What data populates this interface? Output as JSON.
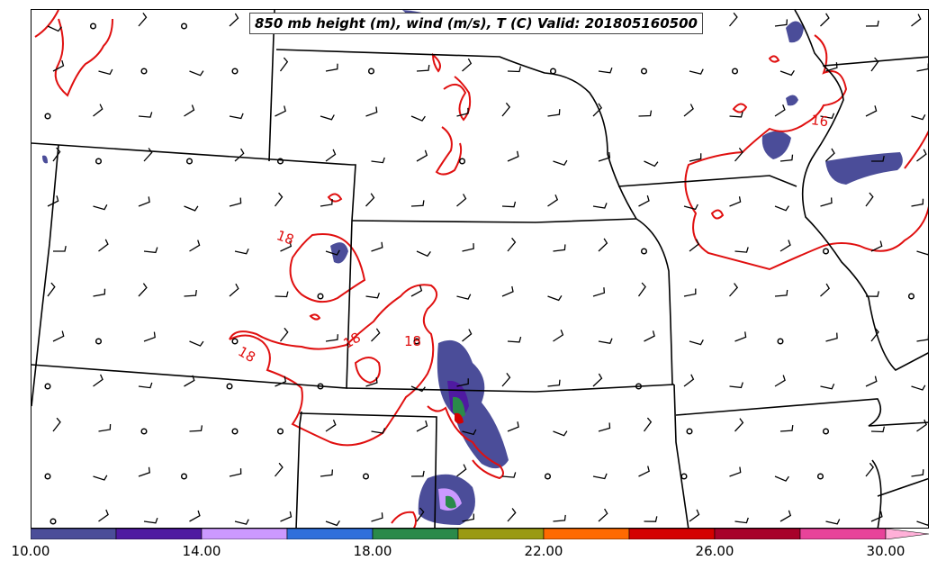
{
  "title": "850 mb height (m), wind (m/s), T (C) Valid: 201805160500",
  "contour_labels": [
    "18",
    "18",
    "18",
    "18",
    "16"
  ],
  "colorbar": {
    "ticks": [
      "10.00",
      "14.00",
      "18.00",
      "22.00",
      "26.00",
      "30.00"
    ],
    "min": 10,
    "max": 31,
    "colors": [
      "#4b4d99",
      "#4f1aa1",
      "#cc99ff",
      "#2f6fdb",
      "#2a8a4a",
      "#9a9a12",
      "#ff6a00",
      "#d40000",
      "#a8002a",
      "#e8439a",
      "#ffb0d8"
    ]
  },
  "colors": {
    "temperature_contour": "#e01010",
    "boundaries": "#000000"
  }
}
